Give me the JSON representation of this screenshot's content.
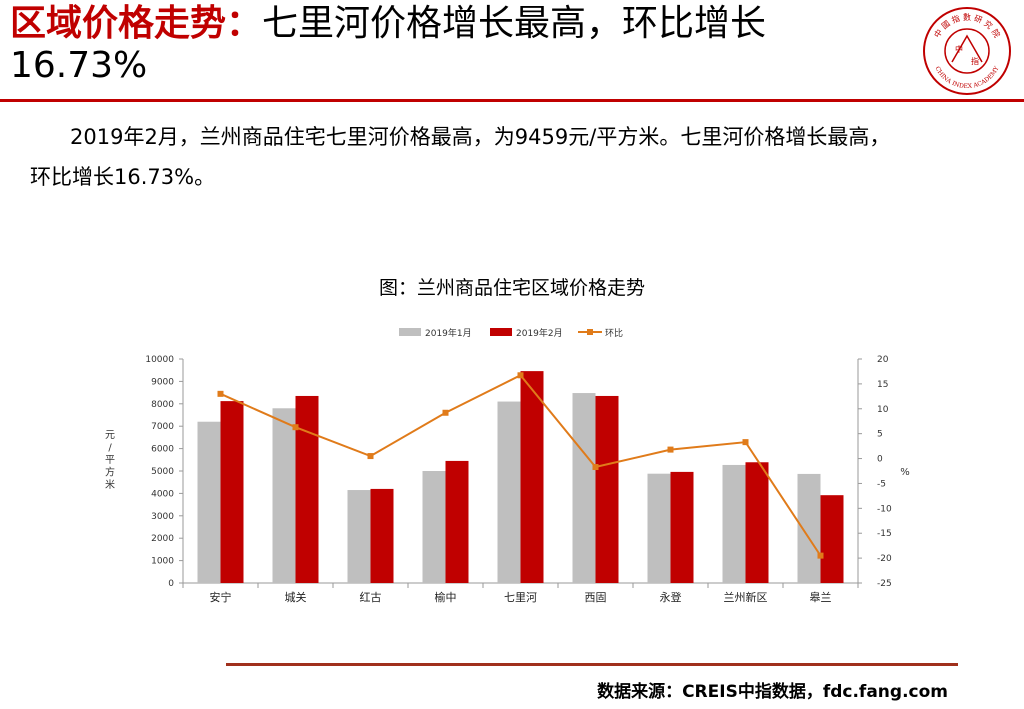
{
  "slide": {
    "title_red": "区域价格走势：",
    "title_black": "七里河价格增长最高，环比增长",
    "title_line2": "16.73%",
    "summary_line1": "2019年2月，兰州商品住宅七里河价格最高，为9459元/平方米。七里河价格增长最高，",
    "summary_line2": "环比增长16.73%。",
    "source": "数据来源：CREIS中指数据，fdc.fang.com",
    "logo_top_text": "中 國 指 數 研 究 院",
    "logo_bottom_text": "CHINA INDEX ACADEMY",
    "logo_center_left": "中",
    "logo_center_right": "指"
  },
  "colors": {
    "accent_red": "#c00000",
    "series_jan": "#bfbfbf",
    "series_feb": "#c00000",
    "series_mom": "#e07b1a"
  },
  "chart_data": {
    "type": "bar",
    "title": "图：兰州商品住宅区域价格走势",
    "categories": [
      "安宁",
      "城关",
      "红古",
      "榆中",
      "七里河",
      "西固",
      "永登",
      "兰州新区",
      "皋兰"
    ],
    "series": [
      {
        "name": "2019年1月",
        "type": "bar",
        "axis": "left",
        "values": [
          7200,
          7800,
          4150,
          5000,
          8100,
          8480,
          4880,
          5270,
          4870
        ]
      },
      {
        "name": "2019年2月",
        "type": "bar",
        "axis": "left",
        "values": [
          8120,
          8350,
          4200,
          5450,
          9459,
          8350,
          4960,
          5390,
          3920
        ]
      },
      {
        "name": "环比",
        "type": "line",
        "axis": "right",
        "values": [
          13.0,
          6.3,
          0.5,
          9.2,
          16.73,
          -1.7,
          1.8,
          3.3,
          -19.5
        ]
      }
    ],
    "ylabel": "元/平方米",
    "ylim": [
      0,
      10000
    ],
    "yticks": [
      0,
      1000,
      2000,
      3000,
      4000,
      5000,
      6000,
      7000,
      8000,
      9000,
      10000
    ],
    "y2label": "%",
    "y2lim": [
      -25,
      20
    ],
    "y2ticks": [
      20,
      15,
      10,
      5,
      0,
      -5,
      -10,
      -15,
      -20,
      -25
    ],
    "legend": "top",
    "grid": false
  }
}
